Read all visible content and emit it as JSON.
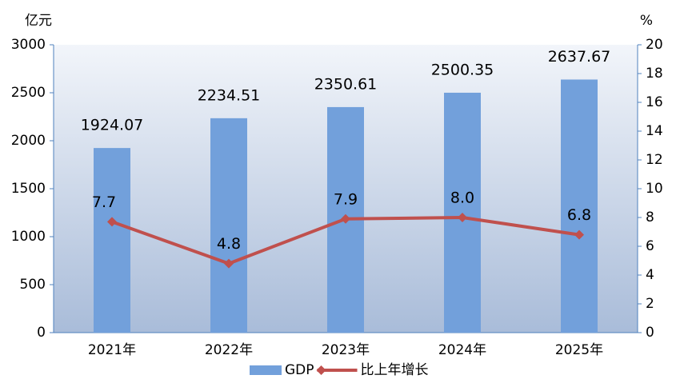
{
  "chart_data": {
    "type": "bar",
    "y_label": "亿元",
    "y2_label": "%",
    "categories": [
      "2021年",
      "2022年",
      "2023年",
      "2024年",
      "2025年"
    ],
    "series": [
      {
        "name": "GDP",
        "type": "bar",
        "color": "#72a0db",
        "values": [
          1924.07,
          2234.51,
          2350.61,
          2500.35,
          2637.67
        ]
      },
      {
        "name": "比上年增长",
        "type": "line",
        "axis": "y2",
        "color": "#c0504d",
        "values": [
          7.7,
          4.8,
          7.9,
          8.0,
          6.8
        ],
        "value_labels": [
          "7.7",
          "4.8",
          "7.9",
          "8.0",
          "6.8"
        ]
      }
    ],
    "ylim": [
      0,
      3000
    ],
    "yticks": [
      0,
      500,
      1000,
      1500,
      2000,
      2500,
      3000
    ],
    "y2lim": [
      0,
      20
    ],
    "y2ticks": [
      0,
      2,
      4,
      6,
      8,
      10,
      12,
      14,
      16,
      18,
      20
    ],
    "legend": "bottom"
  }
}
